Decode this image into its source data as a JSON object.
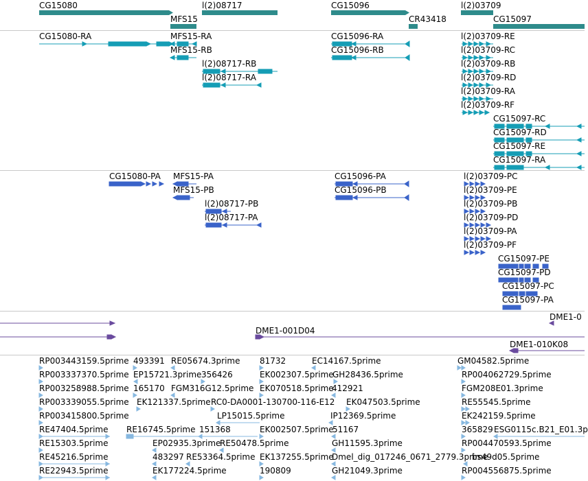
{
  "colors": {
    "gene": "#2e8b8b",
    "transcript": "#159db5",
    "protein": "#3a63c9",
    "clone": "#6a4b9e",
    "est": "#87b8e0",
    "separator": "#c8c8c8"
  },
  "genes": [
    {
      "label": "CG15080"
    },
    {
      "label": "MFS15"
    },
    {
      "label": "l(2)08717"
    },
    {
      "label": "CG15096"
    },
    {
      "label": "CR43418"
    },
    {
      "label": "l(2)03709"
    },
    {
      "label": "CG15097"
    }
  ],
  "transcripts": [
    {
      "label": "CG15080-RA"
    },
    {
      "label": "MFS15-RA"
    },
    {
      "label": "MFS15-RB"
    },
    {
      "label": "l(2)08717-RB"
    },
    {
      "label": "l(2)08717-RA"
    },
    {
      "label": "CG15096-RA"
    },
    {
      "label": "CG15096-RB"
    },
    {
      "label": "l(2)03709-RE"
    },
    {
      "label": "l(2)03709-RC"
    },
    {
      "label": "l(2)03709-RB"
    },
    {
      "label": "l(2)03709-RD"
    },
    {
      "label": "l(2)03709-RA"
    },
    {
      "label": "l(2)03709-RF"
    },
    {
      "label": "CG15097-RC"
    },
    {
      "label": "CG15097-RD"
    },
    {
      "label": "CG15097-RE"
    },
    {
      "label": "CG15097-RA"
    }
  ],
  "proteins": [
    {
      "label": "CG15080-PA"
    },
    {
      "label": "MFS15-PA"
    },
    {
      "label": "MFS15-PB"
    },
    {
      "label": "l(2)08717-PB"
    },
    {
      "label": "l(2)08717-PA"
    },
    {
      "label": "CG15096-PA"
    },
    {
      "label": "CG15096-PB"
    },
    {
      "label": "l(2)03709-PC"
    },
    {
      "label": "l(2)03709-PE"
    },
    {
      "label": "l(2)03709-PB"
    },
    {
      "label": "l(2)03709-PD"
    },
    {
      "label": "l(2)03709-PA"
    },
    {
      "label": "l(2)03709-PF"
    },
    {
      "label": "CG15097-PE"
    },
    {
      "label": "CG15097-PD"
    },
    {
      "label": "CG15097-PC"
    },
    {
      "label": "CG15097-PA"
    }
  ],
  "clones": [
    {
      "label": "DME1-001D04"
    },
    {
      "label": "DME1-010K08"
    },
    {
      "label": "DME1-0"
    }
  ],
  "ests": [
    {
      "label": "RP003443159.5prime"
    },
    {
      "label": "493391"
    },
    {
      "label": "RE05674.3prime"
    },
    {
      "label": "81732"
    },
    {
      "label": "EC14167.5prime"
    },
    {
      "label": "GM04582.5prime"
    },
    {
      "label": "RP003337370.5prime"
    },
    {
      "label": "EP15721.3prime"
    },
    {
      "label": "356426"
    },
    {
      "label": "EK002307.5prime"
    },
    {
      "label": "GH28436.5prime"
    },
    {
      "label": "RP004062729.5prime"
    },
    {
      "label": "RP003258988.5prime"
    },
    {
      "label": "165170"
    },
    {
      "label": "FGM316G12.5prime"
    },
    {
      "label": "EK070518.5prime"
    },
    {
      "label": "412921"
    },
    {
      "label": "FGM208E01.3prime"
    },
    {
      "label": "RP003339055.5prime"
    },
    {
      "label": "EK121337.5prime"
    },
    {
      "label": "RC0-DA0001-130700-116-E12"
    },
    {
      "label": "EK047503.5prime"
    },
    {
      "label": "RE55545.5prime"
    },
    {
      "label": "RP003415800.5prime"
    },
    {
      "label": "LP15015.5prime"
    },
    {
      "label": "IP12369.5prime"
    },
    {
      "label": "EK242159.5prime"
    },
    {
      "label": "RE47404.5prime"
    },
    {
      "label": "RE16745.5prime"
    },
    {
      "label": "151368"
    },
    {
      "label": "EK002507.5prime"
    },
    {
      "label": "51167"
    },
    {
      "label": "365829"
    },
    {
      "label": "ESG0115c.B21_E01.3p"
    },
    {
      "label": "RE15303.5prime"
    },
    {
      "label": "EP02935.3prime"
    },
    {
      "label": "RE50478.5prime"
    },
    {
      "label": "GH11595.3prime"
    },
    {
      "label": "RP004470593.5prime"
    },
    {
      "label": "RE45216.5prime"
    },
    {
      "label": "483297"
    },
    {
      "label": "RE53364.5prime"
    },
    {
      "label": "EK137255.5prime"
    },
    {
      "label": "Dmel_dig_017246_0671_2779.3prime"
    },
    {
      "label": "bs49d05.5prime"
    },
    {
      "label": "RE22943.5prime"
    },
    {
      "label": "EK177224.5prime"
    },
    {
      "label": "190809"
    },
    {
      "label": "GH21049.3prime"
    },
    {
      "label": "RP004556875.5prime"
    }
  ]
}
